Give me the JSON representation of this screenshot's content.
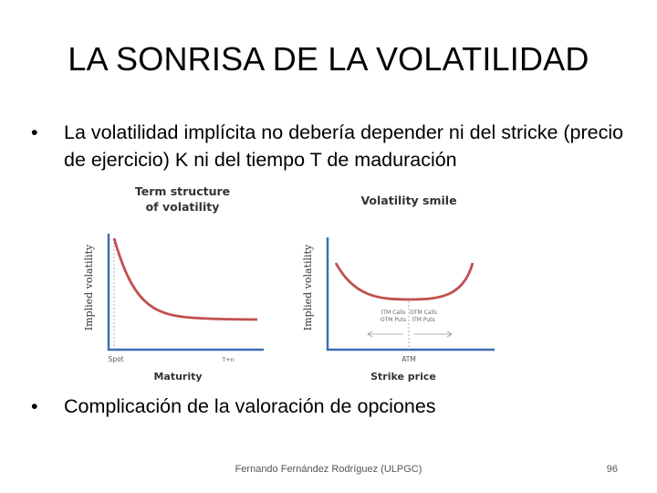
{
  "slide": {
    "title": "LA SONRISA DE LA VOLATILIDAD",
    "bullets": [
      "La volatilidad implícita no debería depender ni del stricke (precio de ejercicio) K ni del tiempo T de maduración",
      "Complicación de la valoración de opciones"
    ],
    "bullet_symbol": "•",
    "footer": "Fernando Fernández Rodríguez (ULPGC)",
    "page_number": "96"
  },
  "figure": {
    "left_chart": {
      "title_line1": "Term structure",
      "title_line2": "of volatility",
      "ylabel": "Implied volatility",
      "xlabel": "Maturity",
      "tick_spot": "Spot",
      "tick_t": "T+n"
    },
    "right_chart": {
      "title": "Volatility smile",
      "ylabel": "Implied volatility",
      "xlabel": "Strike price",
      "tick_atm": "ATM",
      "left_region_line1": "ITM Calls",
      "left_region_line2": "OTM Puts",
      "right_region_line1": "OTM Calls",
      "right_region_line2": "ITM Puts"
    },
    "colors": {
      "axis": "#3b6fb6",
      "curve": "#c0504d"
    }
  }
}
